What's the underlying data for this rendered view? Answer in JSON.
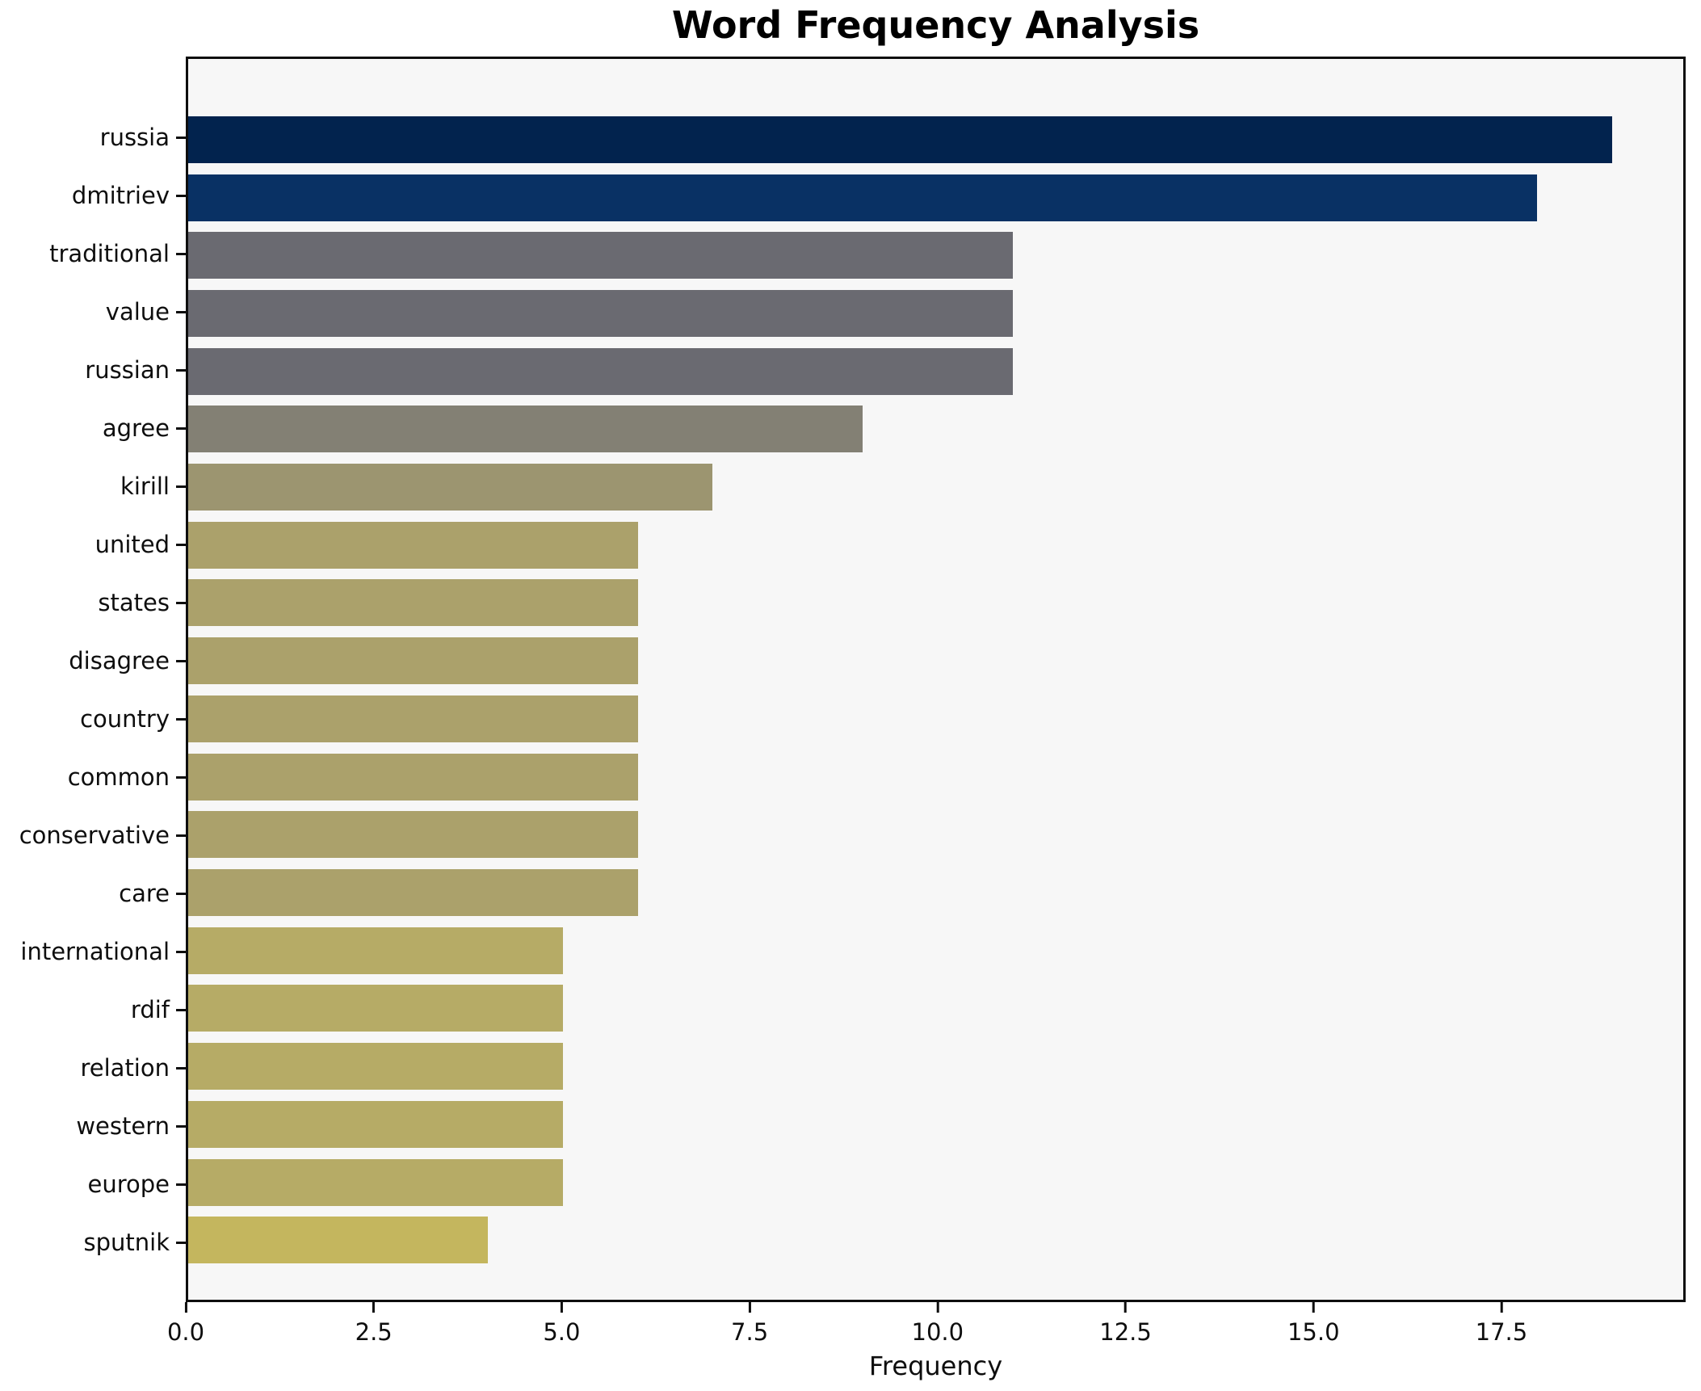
{
  "chart_data": {
    "type": "bar",
    "orientation": "horizontal",
    "title": "Word Frequency Analysis",
    "xlabel": "Frequency",
    "ylabel": "",
    "xlim": [
      0,
      19.95
    ],
    "grid": false,
    "legend": null,
    "plot_bg": "#f7f7f7",
    "fig_bg": "#ffffff",
    "spine_color": "#0e0e0e",
    "xticks": [
      "0.0",
      "2.5",
      "5.0",
      "7.5",
      "10.0",
      "12.5",
      "15.0",
      "17.5"
    ],
    "xtick_values": [
      0,
      2.5,
      5,
      7.5,
      10,
      12.5,
      15,
      17.5
    ],
    "categories": [
      "russia",
      "dmitriev",
      "traditional",
      "value",
      "russian",
      "agree",
      "kirill",
      "united",
      "states",
      "disagree",
      "country",
      "common",
      "conservative",
      "care",
      "international",
      "rdif",
      "relation",
      "western",
      "europe",
      "sputnik"
    ],
    "values": [
      19,
      18,
      11,
      11,
      11,
      9,
      7,
      6,
      6,
      6,
      6,
      6,
      6,
      6,
      5,
      5,
      5,
      5,
      5,
      4
    ],
    "bars": [
      {
        "label": "russia",
        "value": 19,
        "color": "#02234e"
      },
      {
        "label": "dmitriev",
        "value": 18,
        "color": "#093164"
      },
      {
        "label": "traditional",
        "value": 11,
        "color": "#6a6a71"
      },
      {
        "label": "value",
        "value": 11,
        "color": "#6a6a71"
      },
      {
        "label": "russian",
        "value": 11,
        "color": "#6a6a71"
      },
      {
        "label": "agree",
        "value": 9,
        "color": "#838074"
      },
      {
        "label": "kirill",
        "value": 7,
        "color": "#9c9570"
      },
      {
        "label": "united",
        "value": 6,
        "color": "#aba16b"
      },
      {
        "label": "states",
        "value": 6,
        "color": "#aba16b"
      },
      {
        "label": "disagree",
        "value": 6,
        "color": "#aba16b"
      },
      {
        "label": "country",
        "value": 6,
        "color": "#aba16b"
      },
      {
        "label": "common",
        "value": 6,
        "color": "#aba16b"
      },
      {
        "label": "conservative",
        "value": 6,
        "color": "#aba16b"
      },
      {
        "label": "care",
        "value": 6,
        "color": "#aba16b"
      },
      {
        "label": "international",
        "value": 5,
        "color": "#b6ab66"
      },
      {
        "label": "rdif",
        "value": 5,
        "color": "#b6ab66"
      },
      {
        "label": "relation",
        "value": 5,
        "color": "#b6ab66"
      },
      {
        "label": "western",
        "value": 5,
        "color": "#b6ab66"
      },
      {
        "label": "europe",
        "value": 5,
        "color": "#b6ab66"
      },
      {
        "label": "sputnik",
        "value": 4,
        "color": "#c4b65e"
      }
    ]
  }
}
